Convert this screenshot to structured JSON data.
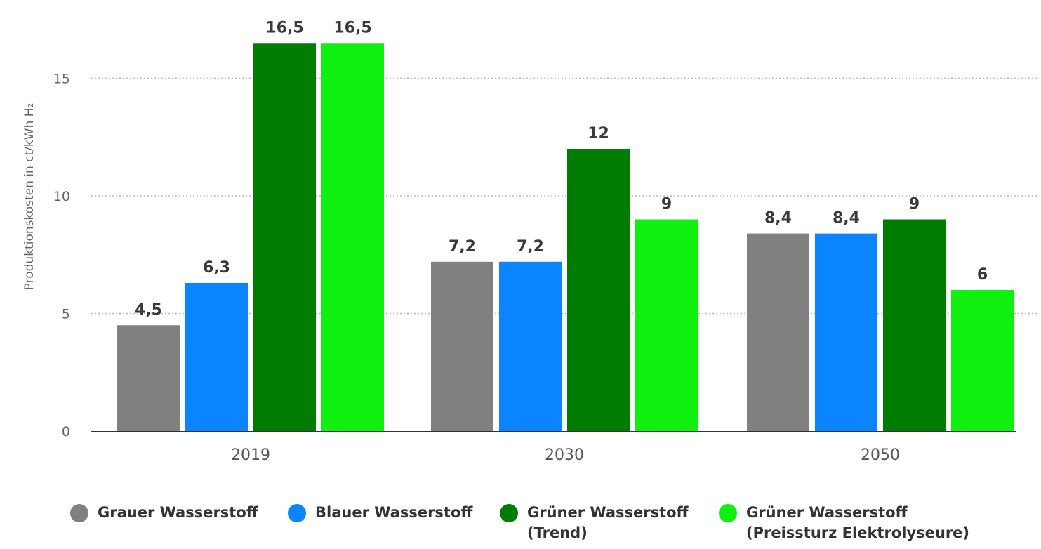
{
  "chart_data": {
    "type": "bar",
    "title": "",
    "xlabel": "",
    "ylabel": "Produktionskosten in ct/kWh H₂",
    "ylim": [
      0,
      16.5
    ],
    "yticks": [
      "0",
      "5",
      "10",
      "15"
    ],
    "categories": [
      "2019",
      "2030",
      "2050"
    ],
    "grid": true,
    "legend_position": "bottom",
    "series": [
      {
        "name": "Grauer Wasserstoff",
        "color": "#808080",
        "values": [
          4.5,
          7.2,
          8.4
        ],
        "labels": [
          "4,5",
          "7,2",
          "8,4"
        ]
      },
      {
        "name": "Blauer Wasserstoff",
        "color": "#0a84ff",
        "values": [
          6.3,
          7.2,
          8.4
        ],
        "labels": [
          "6,3",
          "7,2",
          "8,4"
        ]
      },
      {
        "name": "Grüner Wasserstoff\n(Trend)",
        "color": "#007c00",
        "values": [
          16.5,
          12,
          9
        ],
        "labels": [
          "16,5",
          "12",
          "9"
        ]
      },
      {
        "name": "Grüner Wasserstoff\n(Preissturz Elektrolyseure)",
        "color": "#0ff00f",
        "values": [
          16.5,
          9,
          6
        ],
        "labels": [
          "16,5",
          "9",
          "6"
        ]
      }
    ]
  }
}
